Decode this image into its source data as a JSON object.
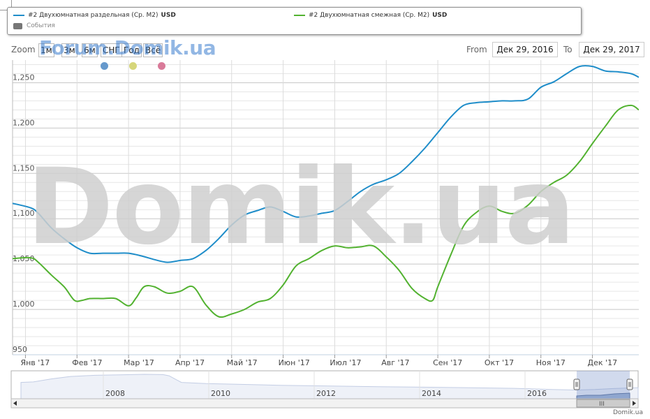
{
  "legend": {
    "series1_label": "#2 Двухюмнатная раздельная (Ср. М2)",
    "series1_unit": "USD",
    "series2_label": "#2 Двухюмнатная смежная (Ср. М2)",
    "series2_unit": "USD",
    "events_label": "События"
  },
  "toolbar": {
    "zoom_label": "Zoom",
    "buttons": [
      "1м",
      "3м",
      "6м",
      "СНГ",
      "Год",
      "Всё"
    ],
    "from_label": "From",
    "from_value": "Дек 29, 2016",
    "to_label": "To",
    "to_value": "Дек 29, 2017"
  },
  "watermarks": {
    "forum": "Forum.Domik.ua",
    "main": "Domik.ua"
  },
  "credit": "Domik.ua",
  "event_dots": [
    "#6699cc",
    "#d6d67a",
    "#d97a99"
  ],
  "chart_data": {
    "type": "line",
    "ylim": [
      950,
      1275
    ],
    "yticks": [
      950,
      1000,
      1050,
      1100,
      1150,
      1200,
      1250
    ],
    "ytick_labels": [
      "950",
      "1,000",
      "1,050",
      "1,100",
      "1,150",
      "1,200",
      "1,250"
    ],
    "xlim": [
      -0.25,
      11.9
    ],
    "xticks": [
      0,
      1,
      2,
      3,
      4,
      5,
      6,
      7,
      8,
      9,
      10,
      11
    ],
    "xtick_labels": [
      "Янв '17",
      "Фев '17",
      "Мар '17",
      "Апр '17",
      "Май '17",
      "Июн '17",
      "Июл '17",
      "Авг '17",
      "Сен '17",
      "Окт '17",
      "Ноя '17",
      "Дек '17"
    ],
    "grid": true,
    "series": [
      {
        "name": "#2 Двухюмнатная раздельная (Ср. М2)",
        "color": "#1f8dc9",
        "x": [
          -0.25,
          0.1,
          0.25,
          0.5,
          0.75,
          1.0,
          1.25,
          1.5,
          1.75,
          2.0,
          2.25,
          2.5,
          2.75,
          3.0,
          3.25,
          3.5,
          3.75,
          4.0,
          4.25,
          4.5,
          4.75,
          5.0,
          5.25,
          5.5,
          5.75,
          6.0,
          6.25,
          6.5,
          6.75,
          7.0,
          7.25,
          7.5,
          7.75,
          8.0,
          8.25,
          8.5,
          8.75,
          9.0,
          9.25,
          9.5,
          9.75,
          10.0,
          10.25,
          10.5,
          10.75,
          11.0,
          11.25,
          11.5,
          11.75,
          11.9
        ],
        "values": [
          1117,
          1112,
          1106,
          1090,
          1078,
          1068,
          1062,
          1062,
          1062,
          1062,
          1059,
          1055,
          1052,
          1054,
          1056,
          1065,
          1078,
          1093,
          1104,
          1109,
          1113,
          1108,
          1102,
          1103,
          1106,
          1109,
          1119,
          1130,
          1138,
          1143,
          1150,
          1163,
          1178,
          1195,
          1212,
          1225,
          1228,
          1229,
          1230,
          1230,
          1232,
          1245,
          1251,
          1260,
          1268,
          1268,
          1263,
          1262,
          1260,
          1256
        ]
      },
      {
        "name": "#2 Двухюмнатная смежная (Ср. М2)",
        "color": "#52b230",
        "x": [
          -0.25,
          0.1,
          0.25,
          0.5,
          0.75,
          0.95,
          1.1,
          1.25,
          1.5,
          1.75,
          2.0,
          2.15,
          2.3,
          2.5,
          2.75,
          3.0,
          3.25,
          3.5,
          3.75,
          4.0,
          4.25,
          4.5,
          4.75,
          5.0,
          5.25,
          5.5,
          5.75,
          6.0,
          6.25,
          6.5,
          6.75,
          7.0,
          7.25,
          7.5,
          7.75,
          7.9,
          8.0,
          8.25,
          8.5,
          8.75,
          9.0,
          9.25,
          9.5,
          9.75,
          10.0,
          10.25,
          10.5,
          10.75,
          11.0,
          11.25,
          11.5,
          11.75,
          11.9
        ],
        "values": [
          1056,
          1057,
          1052,
          1038,
          1025,
          1010,
          1010,
          1012,
          1012,
          1012,
          1004,
          1013,
          1025,
          1025,
          1018,
          1020,
          1025,
          1005,
          992,
          995,
          1000,
          1008,
          1012,
          1027,
          1048,
          1056,
          1065,
          1070,
          1068,
          1069,
          1070,
          1058,
          1043,
          1023,
          1012,
          1010,
          1025,
          1060,
          1092,
          1107,
          1114,
          1108,
          1106,
          1115,
          1130,
          1140,
          1148,
          1163,
          1183,
          1202,
          1220,
          1225,
          1220
        ]
      }
    ],
    "navigator": {
      "xtick_labels": [
        "2008",
        "2010",
        "2012",
        "2014",
        "2016"
      ]
    }
  }
}
